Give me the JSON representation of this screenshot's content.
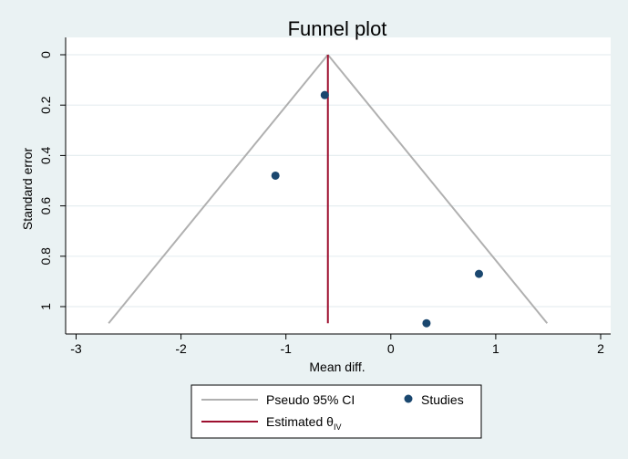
{
  "chart_data": {
    "type": "scatter",
    "title": "Funnel plot",
    "xlabel": "Mean diff.",
    "ylabel": "Standard error",
    "xlim": [
      -3,
      2
    ],
    "ylim": [
      0,
      1.066
    ],
    "y_reversed": true,
    "grid": true,
    "x_ticks": [
      -3,
      -2,
      -1,
      0,
      1,
      2
    ],
    "y_ticks": [
      0,
      0.2,
      0.4,
      0.6,
      0.8,
      1
    ],
    "series": [
      {
        "name": "Studies",
        "points": [
          {
            "x": -0.63,
            "y": 0.16
          },
          {
            "x": -1.1,
            "y": 0.48
          },
          {
            "x": 0.84,
            "y": 0.87
          },
          {
            "x": 0.34,
            "y": 1.066
          }
        ]
      }
    ],
    "pseudo_ci": {
      "name": "Pseudo 95% CI",
      "apex": {
        "x": -0.6,
        "y": 0
      },
      "left_base": {
        "x": -2.69,
        "y": 1.066
      },
      "right_base": {
        "x": 1.49,
        "y": 1.066
      }
    },
    "estimate": {
      "name_main": "Estimated θ",
      "name_sub": "IV",
      "x": -0.6
    },
    "legend_position": "bottom",
    "colors": {
      "background": "#eaf2f3",
      "plot_background": "#ffffff",
      "ci_line": "#b0b0b0",
      "estimate_line": "#9d0f2e",
      "points": "#1a476f",
      "title": "#1a3050"
    }
  }
}
